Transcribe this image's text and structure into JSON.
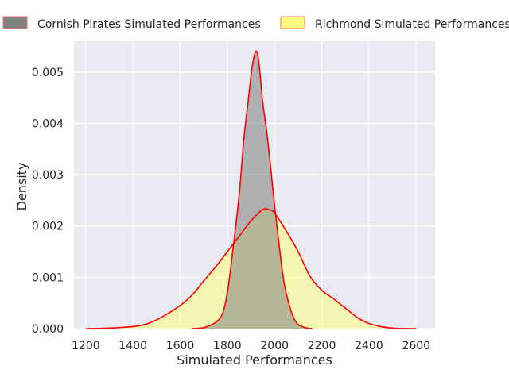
{
  "chart_data": {
    "type": "area",
    "xlabel": "Simulated Performances",
    "ylabel": "Density",
    "xlim": [
      1150,
      2680
    ],
    "ylim": [
      0,
      0.0056
    ],
    "xticks": [
      1200,
      1400,
      1600,
      1800,
      2000,
      2200,
      2400,
      2600
    ],
    "yticks": [
      0.0,
      0.001,
      0.002,
      0.003,
      0.004,
      0.005
    ],
    "ytick_labels": [
      "0.000",
      "0.001",
      "0.002",
      "0.003",
      "0.004",
      "0.005"
    ],
    "grid": true,
    "legend_position": "top",
    "series": [
      {
        "name": "Cornish Pirates Simulated Performances",
        "fill": "#808080",
        "line": "#ff0000",
        "x": [
          1650,
          1700,
          1750,
          1780,
          1800,
          1820,
          1850,
          1870,
          1890,
          1905,
          1920,
          1930,
          1940,
          1950,
          1965,
          1980,
          2000,
          2020,
          2040,
          2060,
          2080,
          2100,
          2130,
          2160
        ],
        "y": [
          0.0,
          2e-05,
          0.00012,
          0.0003,
          0.0007,
          0.0014,
          0.0026,
          0.0037,
          0.0045,
          0.0051,
          0.0054,
          0.0053,
          0.0049,
          0.0044,
          0.0039,
          0.0033,
          0.0024,
          0.0016,
          0.0009,
          0.0005,
          0.00022,
          8e-05,
          2e-05,
          0.0
        ]
      },
      {
        "name": "Richmond Simulated Performances",
        "fill": "#ffff80",
        "line": "#ff0000",
        "x": [
          1200,
          1300,
          1400,
          1450,
          1500,
          1550,
          1600,
          1650,
          1700,
          1750,
          1800,
          1850,
          1900,
          1950,
          1975,
          2000,
          2050,
          2100,
          2150,
          2200,
          2250,
          2300,
          2350,
          2400,
          2450,
          2500,
          2550,
          2600
        ],
        "y": [
          0.0,
          1e-05,
          4e-05,
          8e-05,
          0.00017,
          0.0003,
          0.00045,
          0.00065,
          0.00093,
          0.0012,
          0.0015,
          0.0018,
          0.0021,
          0.00232,
          0.00232,
          0.00225,
          0.0019,
          0.0015,
          0.00102,
          0.00075,
          0.00058,
          0.0004,
          0.00022,
          0.0001,
          4e-05,
          1e-05,
          0.0,
          0.0
        ]
      }
    ]
  }
}
